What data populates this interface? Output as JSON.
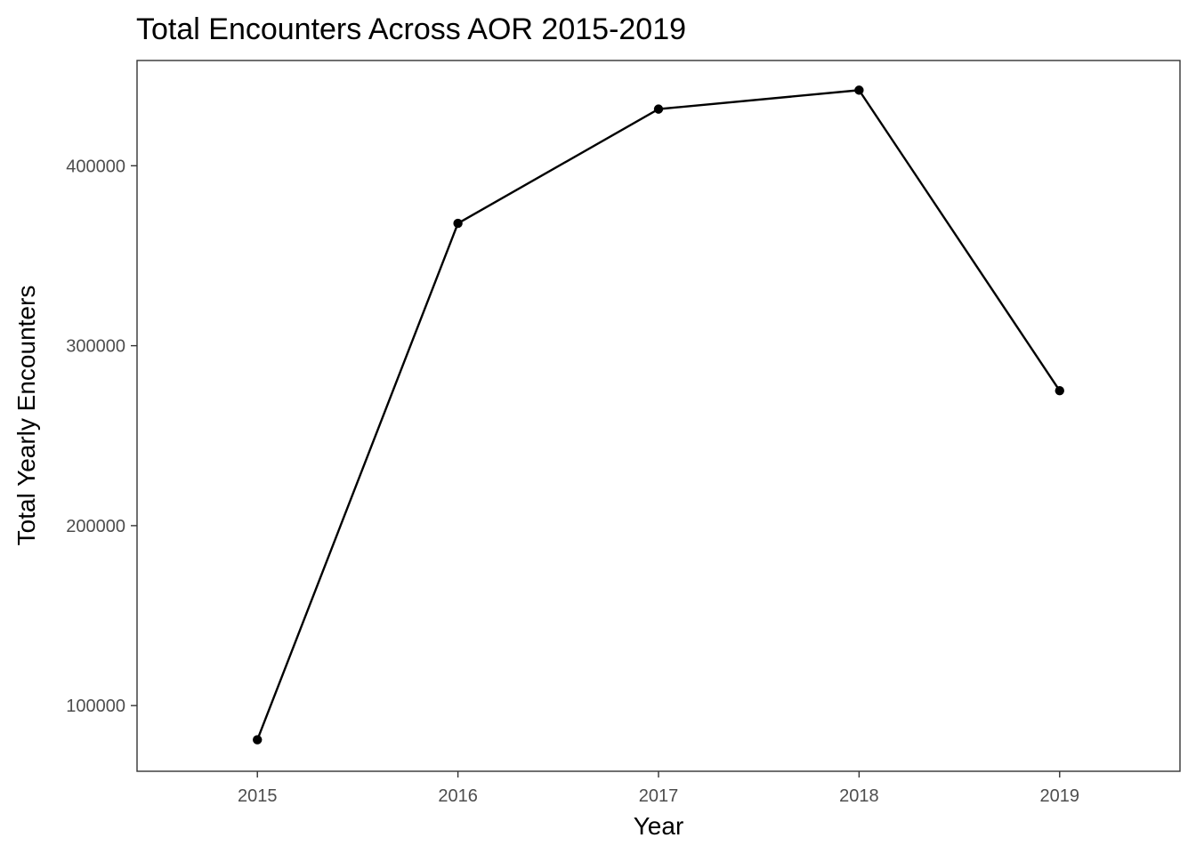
{
  "chart_data": {
    "type": "line",
    "title": "Total Encounters Across AOR 2015-2019",
    "xlabel": "Year",
    "ylabel": "Total Yearly Encounters",
    "x": [
      2015,
      2016,
      2017,
      2018,
      2019
    ],
    "x_tick_labels": [
      "2015",
      "2016",
      "2017",
      "2018",
      "2019"
    ],
    "y_tick_values": [
      100000,
      200000,
      300000,
      400000
    ],
    "y_tick_labels": [
      "100000",
      "200000",
      "300000",
      "400000"
    ],
    "xlim": [
      2014.4,
      2019.6
    ],
    "ylim": [
      63500,
      458500
    ],
    "series": [
      {
        "values": [
          81000,
          368000,
          431500,
          442000,
          275000
        ],
        "color": "#000000"
      }
    ],
    "grid": false,
    "legend": "none",
    "theme": "bw-no-grid"
  }
}
